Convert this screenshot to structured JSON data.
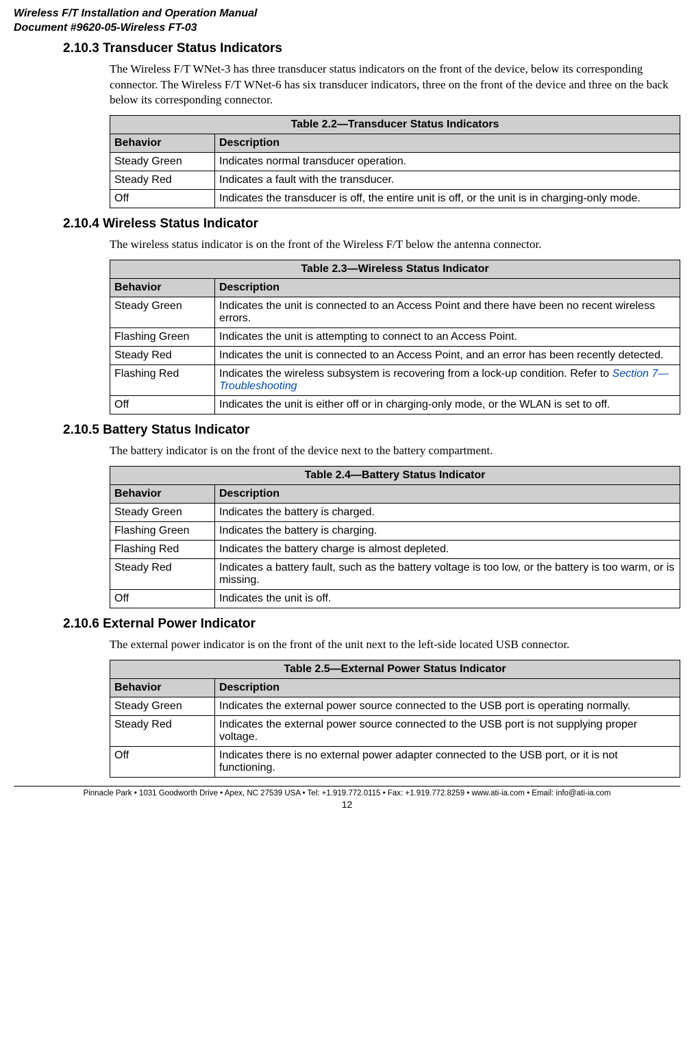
{
  "header": {
    "title_line1": "Wireless F/T Installation and Operation Manual",
    "title_line2": "Document #9620-05-Wireless FT-03"
  },
  "sections": {
    "s1": {
      "num": "2.10.3",
      "title": "Transducer Status Indicators",
      "body": "The Wireless F/T WNet-3 has three transducer status indicators on the front of the device, below its corresponding connector. The Wireless F/T WNet-6 has six transducer indicators, three on the front of the device and three on the back below its corresponding connector."
    },
    "s2": {
      "num": "2.10.4",
      "title": "Wireless Status Indicator",
      "body": "The wireless status indicator is on the front of the Wireless F/T below the antenna connector."
    },
    "s3": {
      "num": "2.10.5",
      "title": "Battery Status Indicator",
      "body": "The battery indicator is on the front of the device next to the battery compartment."
    },
    "s4": {
      "num": "2.10.6",
      "title": "External Power Indicator",
      "body": "The external power indicator is on the front of the unit next to the left-side located USB connector."
    }
  },
  "tables": {
    "t22": {
      "title": "Table 2.2—Transducer Status Indicators",
      "col1": "Behavior",
      "col2": "Description",
      "rows": [
        {
          "b": "Steady Green",
          "d": "Indicates normal transducer operation."
        },
        {
          "b": "Steady Red",
          "d": "Indicates a fault with the transducer."
        },
        {
          "b": "Off",
          "d": "Indicates the transducer is off, the entire unit is off, or the unit is in charging-only mode."
        }
      ]
    },
    "t23": {
      "title": "Table 2.3—Wireless Status Indicator",
      "col1": "Behavior",
      "col2": "Description",
      "rows": [
        {
          "b": "Steady Green",
          "d": "Indicates the unit is connected to an Access Point and there have been no recent wireless errors."
        },
        {
          "b": "Flashing Green",
          "d": "Indicates the unit is attempting to connect to an Access Point."
        },
        {
          "b": "Steady Red",
          "d": "Indicates the unit is connected to an Access Point, and an error has been recently detected."
        },
        {
          "b": "Flashing Red",
          "d_pre": "Indicates the wireless subsystem is recovering from a lock-up condition. Refer to ",
          "d_link": "Section 7—Troubleshooting"
        },
        {
          "b": "Off",
          "d": "Indicates the unit is either off or in charging-only mode, or the WLAN is set to off."
        }
      ]
    },
    "t24": {
      "title": "Table 2.4—Battery Status Indicator",
      "col1": "Behavior",
      "col2": "Description",
      "rows": [
        {
          "b": "Steady Green",
          "d": "Indicates the battery is charged."
        },
        {
          "b": "Flashing Green",
          "d": "Indicates the battery is charging."
        },
        {
          "b": "Flashing Red",
          "d": "Indicates the battery charge is almost depleted."
        },
        {
          "b": "Steady Red",
          "d": "Indicates a battery fault, such as the battery voltage is too low, or the battery is too warm, or is missing."
        },
        {
          "b": "Off",
          "d": "Indicates the unit is off."
        }
      ]
    },
    "t25": {
      "title": "Table 2.5—External Power Status Indicator",
      "col1": "Behavior",
      "col2": "Description",
      "rows": [
        {
          "b": "Steady Green",
          "d": "Indicates the external power source connected to the USB port is operating normally."
        },
        {
          "b": "Steady Red",
          "d": "Indicates the external power source connected to the USB port is not supplying proper voltage."
        },
        {
          "b": "Off",
          "d": "Indicates there is no external power adapter connected to the USB port, or it is not functioning."
        }
      ]
    }
  },
  "footer": {
    "text": "Pinnacle Park • 1031 Goodworth Drive • Apex, NC 27539 USA • Tel: +1.919.772.0115 • Fax: +1.919.772.8259 • www.ati-ia.com • Email: info@ati-ia.com",
    "page": "12"
  },
  "style": {
    "header_bg": "#cfcfcf",
    "link_color": "#0047b3"
  }
}
